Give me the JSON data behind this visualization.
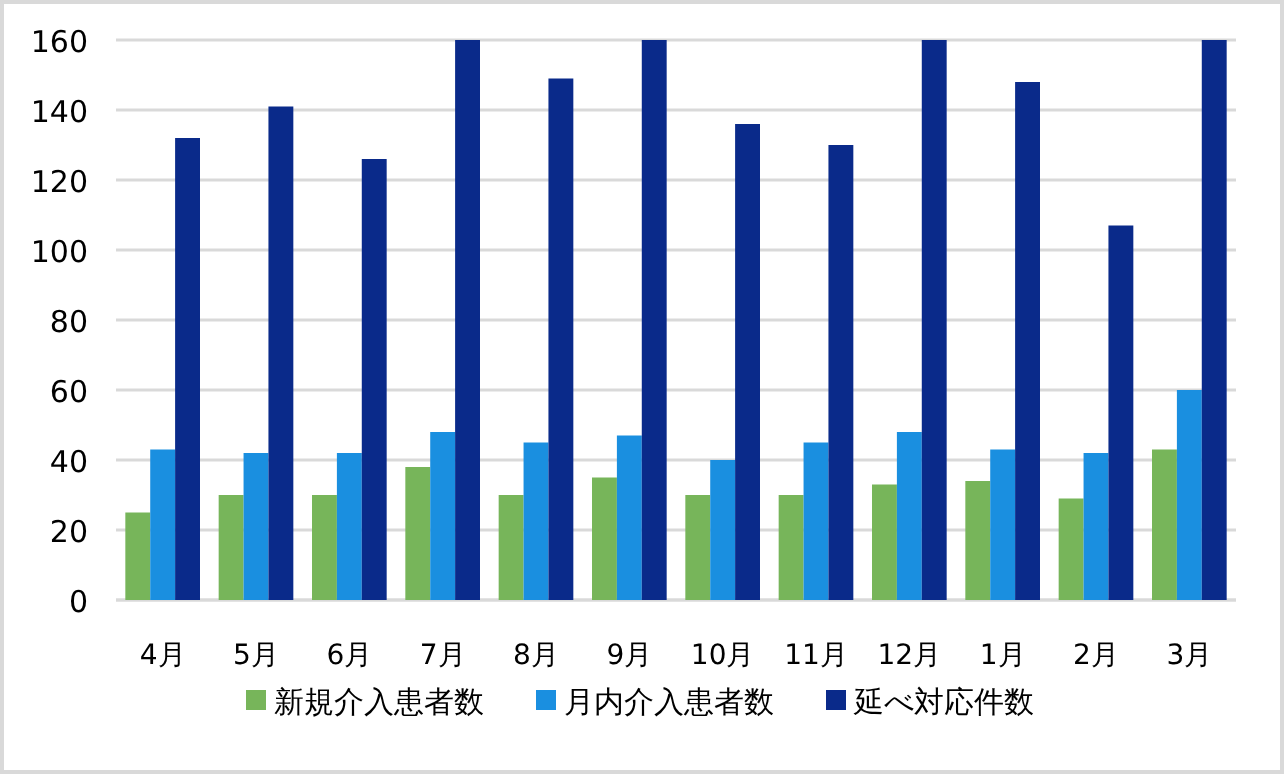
{
  "chart_data": {
    "type": "bar",
    "categories": [
      "4月",
      "5月",
      "6月",
      "7月",
      "8月",
      "9月",
      "10月",
      "11月",
      "12月",
      "1月",
      "2月",
      "3月"
    ],
    "series": [
      {
        "name": "新規介入患者数",
        "color": "#77b55a",
        "values": [
          25,
          30,
          30,
          38,
          30,
          35,
          30,
          30,
          33,
          34,
          29,
          43
        ]
      },
      {
        "name": "月内介入患者数",
        "color": "#1a8fe0",
        "values": [
          43,
          42,
          42,
          48,
          45,
          47,
          40,
          45,
          48,
          43,
          42,
          60
        ]
      },
      {
        "name": "延べ対応件数",
        "color": "#0a2a8a",
        "values": [
          132,
          141,
          126,
          160,
          149,
          160,
          136,
          130,
          160,
          148,
          107,
          160
        ]
      }
    ],
    "ylim": [
      0,
      160
    ],
    "yticks": [
      0,
      20,
      40,
      60,
      80,
      100,
      120,
      140,
      160
    ],
    "grid": "y",
    "legend": "bottom"
  }
}
